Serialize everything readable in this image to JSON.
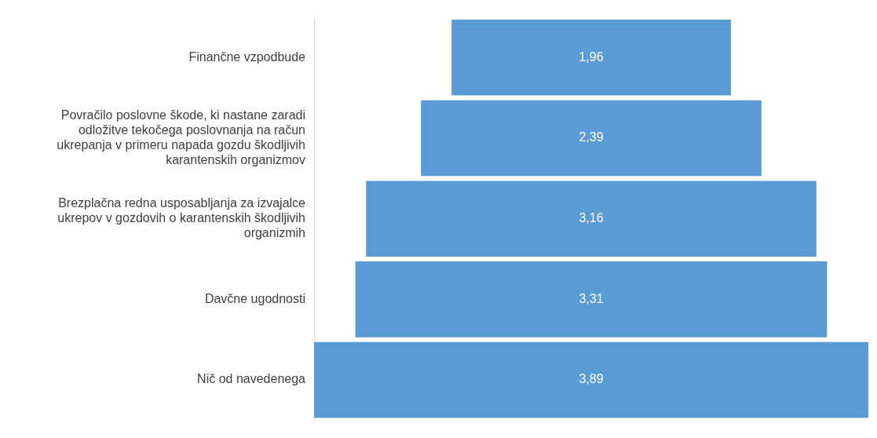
{
  "chart_data": {
    "type": "other",
    "categories": [
      "Finančne vzpodbude",
      "Povračilo poslovne škode, ki nastane zaradi odložitve tekočega poslovnanja na račun ukrepanja v primeru napada gozdu škodljivih karantenskih organizmov",
      "Brezplačna redna usposabljanja za izvajalce ukrepov v gozdovih o karantenskih škodljivih organizmih",
      "Davčne ugodnosti",
      "Nič od navedenega"
    ],
    "values": [
      1.96,
      2.39,
      3.16,
      3.31,
      3.89
    ],
    "value_labels": [
      "1,96",
      "2,39",
      "3,16",
      "3,31",
      "3,89"
    ],
    "color": "#5b9bd5"
  }
}
